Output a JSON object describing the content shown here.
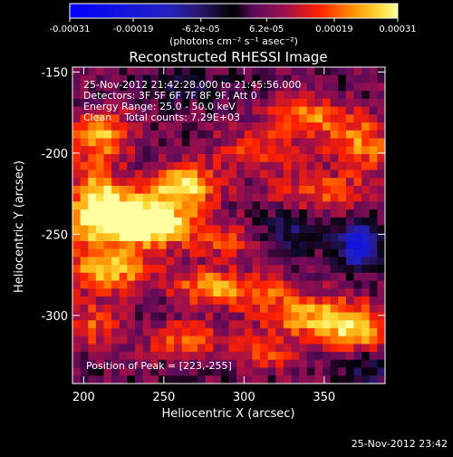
{
  "chart_data": {
    "type": "heatmap",
    "title": "Reconstructed RHESSI Image",
    "xlabel": "Heliocentric X (arcsec)",
    "ylabel": "Heliocentric Y (arcsec)",
    "xlim": [
      193,
      388
    ],
    "ylim": [
      -342,
      -147
    ],
    "x_ticks": [
      "200",
      "250",
      "300",
      "350"
    ],
    "x_tick_values": [
      200,
      250,
      300,
      350
    ],
    "y_ticks": [
      "-150",
      "-200",
      "-250",
      "-300"
    ],
    "y_tick_values": [
      -150,
      -200,
      -250,
      -300
    ],
    "colorbar": {
      "min": -0.00031,
      "max": 0.00031,
      "tick_labels": [
        "-0.00031",
        "-0.00019",
        "-6.2e-05",
        "6.2e-05",
        "0.00019",
        "0.00031"
      ],
      "tick_values": [
        -0.00031,
        -0.00019,
        -6.2e-05,
        6.2e-05,
        0.00019,
        0.00031
      ],
      "units_label": "(photons cm⁻² s⁻¹ asec⁻²)"
    },
    "annotations": {
      "time_range": "25-Nov-2012 21:42:28.000 to 21:45:56.000",
      "detectors": "Detectors: 3F 5F 6F 7F 8F 9F, Att 0",
      "energy": "Energy Range: 25.0 - 50.0 keV",
      "clean": "Clean    Total counts: 7.29E+03",
      "peak": "Position of Peak = [223,-255]"
    },
    "peak_position": [
      223,
      -255
    ],
    "blobs": [
      {
        "x": 236,
        "y": -245,
        "amp": 1.05,
        "sx": 26,
        "sy": 9
      },
      {
        "x": 262,
        "y": -220,
        "amp": 0.8,
        "sx": 15,
        "sy": 9
      },
      {
        "x": 220,
        "y": -232,
        "amp": 0.55,
        "sx": 18,
        "sy": 10
      },
      {
        "x": 215,
        "y": -272,
        "amp": 0.7,
        "sx": 22,
        "sy": 9
      },
      {
        "x": 212,
        "y": -188,
        "amp": 0.55,
        "sx": 14,
        "sy": 10
      },
      {
        "x": 207,
        "y": -222,
        "amp": 0.45,
        "sx": 10,
        "sy": 20
      },
      {
        "x": 340,
        "y": -178,
        "amp": 0.55,
        "sx": 18,
        "sy": 9
      },
      {
        "x": 373,
        "y": -195,
        "amp": 0.55,
        "sx": 14,
        "sy": 12
      },
      {
        "x": 308,
        "y": -200,
        "amp": 0.4,
        "sx": 20,
        "sy": 9
      },
      {
        "x": 350,
        "y": -225,
        "amp": 0.45,
        "sx": 22,
        "sy": 8
      },
      {
        "x": 345,
        "y": -300,
        "amp": 0.65,
        "sx": 22,
        "sy": 9
      },
      {
        "x": 370,
        "y": -310,
        "amp": 0.65,
        "sx": 14,
        "sy": 9
      },
      {
        "x": 305,
        "y": -285,
        "amp": 0.45,
        "sx": 18,
        "sy": 8
      },
      {
        "x": 275,
        "y": -282,
        "amp": 0.5,
        "sx": 14,
        "sy": 8
      },
      {
        "x": 262,
        "y": -315,
        "amp": 0.5,
        "sx": 16,
        "sy": 8
      },
      {
        "x": 315,
        "y": -322,
        "amp": 0.4,
        "sx": 16,
        "sy": 8
      },
      {
        "x": 205,
        "y": -305,
        "amp": 0.45,
        "sx": 12,
        "sy": 10
      },
      {
        "x": 290,
        "y": -255,
        "amp": 0.3,
        "sx": 14,
        "sy": 8
      },
      {
        "x": 372,
        "y": -258,
        "amp": -0.9,
        "sx": 9,
        "sy": 9
      },
      {
        "x": 330,
        "y": -248,
        "amp": -0.35,
        "sx": 14,
        "sy": 9
      },
      {
        "x": 262,
        "y": -160,
        "amp": -0.3,
        "sx": 18,
        "sy": 7
      },
      {
        "x": 378,
        "y": -335,
        "amp": -0.3,
        "sx": 10,
        "sy": 10
      }
    ]
  },
  "footer": {
    "date_stamp": "25-Nov-2012 23:42"
  }
}
